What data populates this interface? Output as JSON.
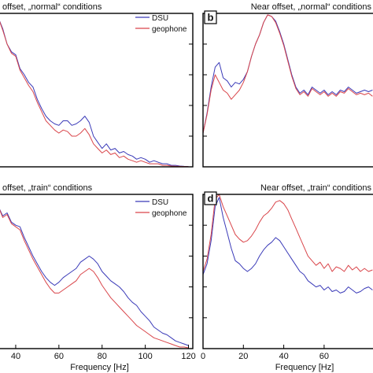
{
  "colors": {
    "dsu": "#3a3ab8",
    "geophone": "#d9454a",
    "axis": "#000000",
    "tick": "#444444"
  },
  "chart_data": [
    {
      "id": "a",
      "type": "line",
      "panel_letter": "",
      "title": "offset, „normal“ conditions",
      "xlabel": "",
      "xlim": [
        32,
        122
      ],
      "ylim": [
        0,
        1
      ],
      "x_ticks": [],
      "legend": [
        "DSU",
        "geophone"
      ],
      "legend_position": "top-right",
      "x": [
        32,
        34,
        36,
        38,
        40,
        42,
        44,
        46,
        48,
        50,
        52,
        54,
        56,
        58,
        60,
        62,
        64,
        66,
        68,
        70,
        72,
        74,
        76,
        78,
        80,
        82,
        84,
        86,
        88,
        90,
        92,
        94,
        96,
        98,
        100,
        102,
        104,
        106,
        108,
        110,
        112,
        114,
        116,
        118,
        120
      ],
      "series": [
        {
          "name": "DSU",
          "values": [
            0.97,
            0.9,
            0.8,
            0.75,
            0.73,
            0.64,
            0.6,
            0.55,
            0.52,
            0.44,
            0.38,
            0.33,
            0.3,
            0.28,
            0.27,
            0.3,
            0.3,
            0.27,
            0.28,
            0.3,
            0.33,
            0.29,
            0.2,
            0.16,
            0.12,
            0.15,
            0.11,
            0.12,
            0.09,
            0.1,
            0.08,
            0.07,
            0.05,
            0.06,
            0.05,
            0.03,
            0.04,
            0.03,
            0.02,
            0.02,
            0.01,
            0.01,
            0.005,
            0.003,
            0.002
          ]
        },
        {
          "name": "geophone",
          "values": [
            0.97,
            0.89,
            0.8,
            0.74,
            0.72,
            0.63,
            0.58,
            0.53,
            0.49,
            0.42,
            0.36,
            0.3,
            0.27,
            0.24,
            0.22,
            0.24,
            0.23,
            0.2,
            0.2,
            0.22,
            0.25,
            0.21,
            0.15,
            0.12,
            0.09,
            0.11,
            0.08,
            0.09,
            0.06,
            0.07,
            0.05,
            0.04,
            0.03,
            0.04,
            0.03,
            0.02,
            0.02,
            0.02,
            0.01,
            0.01,
            0.005,
            0.004,
            0.003,
            0.002,
            0.001
          ]
        }
      ]
    },
    {
      "id": "b",
      "type": "line",
      "panel_letter": "b",
      "title": "Near offset, „normal“ conditions",
      "xlabel": "",
      "xlim": [
        0,
        85
      ],
      "ylim": [
        0,
        1
      ],
      "x_ticks": [],
      "legend": [],
      "x": [
        0,
        2,
        4,
        6,
        8,
        10,
        12,
        14,
        16,
        18,
        20,
        22,
        24,
        26,
        28,
        30,
        32,
        34,
        36,
        38,
        40,
        42,
        44,
        46,
        48,
        50,
        52,
        54,
        56,
        58,
        60,
        62,
        64,
        66,
        68,
        70,
        72,
        74,
        76,
        78,
        80,
        82,
        84
      ],
      "series": [
        {
          "name": "DSU",
          "values": [
            0.22,
            0.35,
            0.52,
            0.65,
            0.68,
            0.58,
            0.56,
            0.52,
            0.55,
            0.54,
            0.57,
            0.62,
            0.72,
            0.8,
            0.86,
            0.94,
            0.99,
            0.98,
            0.95,
            0.88,
            0.8,
            0.7,
            0.6,
            0.52,
            0.48,
            0.5,
            0.47,
            0.52,
            0.5,
            0.48,
            0.5,
            0.47,
            0.49,
            0.47,
            0.5,
            0.49,
            0.52,
            0.5,
            0.48,
            0.49,
            0.5,
            0.49,
            0.5
          ]
        },
        {
          "name": "geophone",
          "values": [
            0.22,
            0.34,
            0.5,
            0.6,
            0.55,
            0.5,
            0.48,
            0.44,
            0.47,
            0.5,
            0.55,
            0.62,
            0.72,
            0.8,
            0.86,
            0.94,
            0.99,
            0.98,
            0.94,
            0.87,
            0.79,
            0.69,
            0.59,
            0.51,
            0.47,
            0.49,
            0.46,
            0.51,
            0.49,
            0.47,
            0.49,
            0.46,
            0.48,
            0.46,
            0.49,
            0.48,
            0.51,
            0.49,
            0.47,
            0.48,
            0.47,
            0.48,
            0.46
          ]
        }
      ]
    },
    {
      "id": "c",
      "type": "line",
      "panel_letter": "",
      "title": "offset, „train“ conditions",
      "xlabel": "Frequency [Hz]",
      "xlim": [
        32,
        122
      ],
      "ylim": [
        0,
        1
      ],
      "x_ticks": [
        40,
        60,
        80,
        100,
        120
      ],
      "legend": [
        "DSU",
        "geophone"
      ],
      "legend_position": "top-right",
      "x": [
        32,
        34,
        36,
        38,
        40,
        42,
        44,
        46,
        48,
        50,
        52,
        54,
        56,
        58,
        60,
        62,
        64,
        66,
        68,
        70,
        72,
        74,
        76,
        78,
        80,
        82,
        84,
        86,
        88,
        90,
        92,
        94,
        96,
        98,
        100,
        102,
        104,
        106,
        108,
        110,
        112,
        114,
        116,
        118,
        120
      ],
      "series": [
        {
          "name": "DSU",
          "values": [
            0.92,
            0.86,
            0.88,
            0.82,
            0.8,
            0.79,
            0.72,
            0.66,
            0.6,
            0.55,
            0.5,
            0.46,
            0.43,
            0.41,
            0.43,
            0.46,
            0.48,
            0.5,
            0.52,
            0.56,
            0.58,
            0.6,
            0.58,
            0.55,
            0.5,
            0.47,
            0.44,
            0.42,
            0.4,
            0.37,
            0.33,
            0.3,
            0.28,
            0.24,
            0.21,
            0.18,
            0.14,
            0.12,
            0.1,
            0.09,
            0.07,
            0.05,
            0.04,
            0.03,
            0.02
          ]
        },
        {
          "name": "geophone",
          "values": [
            0.92,
            0.85,
            0.87,
            0.81,
            0.79,
            0.77,
            0.7,
            0.64,
            0.58,
            0.53,
            0.48,
            0.43,
            0.39,
            0.36,
            0.36,
            0.38,
            0.4,
            0.42,
            0.44,
            0.48,
            0.5,
            0.52,
            0.5,
            0.46,
            0.41,
            0.37,
            0.33,
            0.3,
            0.27,
            0.24,
            0.21,
            0.18,
            0.15,
            0.13,
            0.11,
            0.09,
            0.07,
            0.06,
            0.05,
            0.04,
            0.03,
            0.02,
            0.01,
            0.01,
            0.005
          ]
        }
      ]
    },
    {
      "id": "d",
      "type": "line",
      "panel_letter": "d",
      "title": "Near offset, „train“ conditions",
      "xlabel": "Frequency [Hz]",
      "xlim": [
        0,
        85
      ],
      "ylim": [
        0,
        1
      ],
      "x_ticks": [
        0,
        20,
        40,
        60
      ],
      "legend": [],
      "x": [
        0,
        2,
        4,
        6,
        8,
        10,
        12,
        14,
        16,
        18,
        20,
        22,
        24,
        26,
        28,
        30,
        32,
        34,
        36,
        38,
        40,
        42,
        44,
        46,
        48,
        50,
        52,
        54,
        56,
        58,
        60,
        62,
        64,
        66,
        68,
        70,
        72,
        74,
        76,
        78,
        80,
        82,
        84
      ],
      "series": [
        {
          "name": "DSU",
          "values": [
            0.48,
            0.55,
            0.7,
            0.92,
            0.98,
            0.85,
            0.75,
            0.65,
            0.57,
            0.55,
            0.52,
            0.5,
            0.52,
            0.55,
            0.6,
            0.64,
            0.67,
            0.69,
            0.72,
            0.7,
            0.66,
            0.62,
            0.58,
            0.54,
            0.5,
            0.48,
            0.44,
            0.42,
            0.4,
            0.41,
            0.38,
            0.4,
            0.37,
            0.38,
            0.36,
            0.37,
            0.4,
            0.38,
            0.36,
            0.37,
            0.39,
            0.4,
            0.38
          ]
        },
        {
          "name": "geophone",
          "values": [
            0.5,
            0.58,
            0.74,
            0.97,
            1.0,
            0.92,
            0.86,
            0.8,
            0.74,
            0.71,
            0.69,
            0.7,
            0.73,
            0.77,
            0.82,
            0.86,
            0.88,
            0.91,
            0.95,
            0.96,
            0.94,
            0.9,
            0.84,
            0.78,
            0.72,
            0.66,
            0.6,
            0.57,
            0.54,
            0.56,
            0.52,
            0.55,
            0.5,
            0.53,
            0.52,
            0.5,
            0.54,
            0.51,
            0.53,
            0.5,
            0.52,
            0.5,
            0.51
          ]
        }
      ]
    }
  ]
}
